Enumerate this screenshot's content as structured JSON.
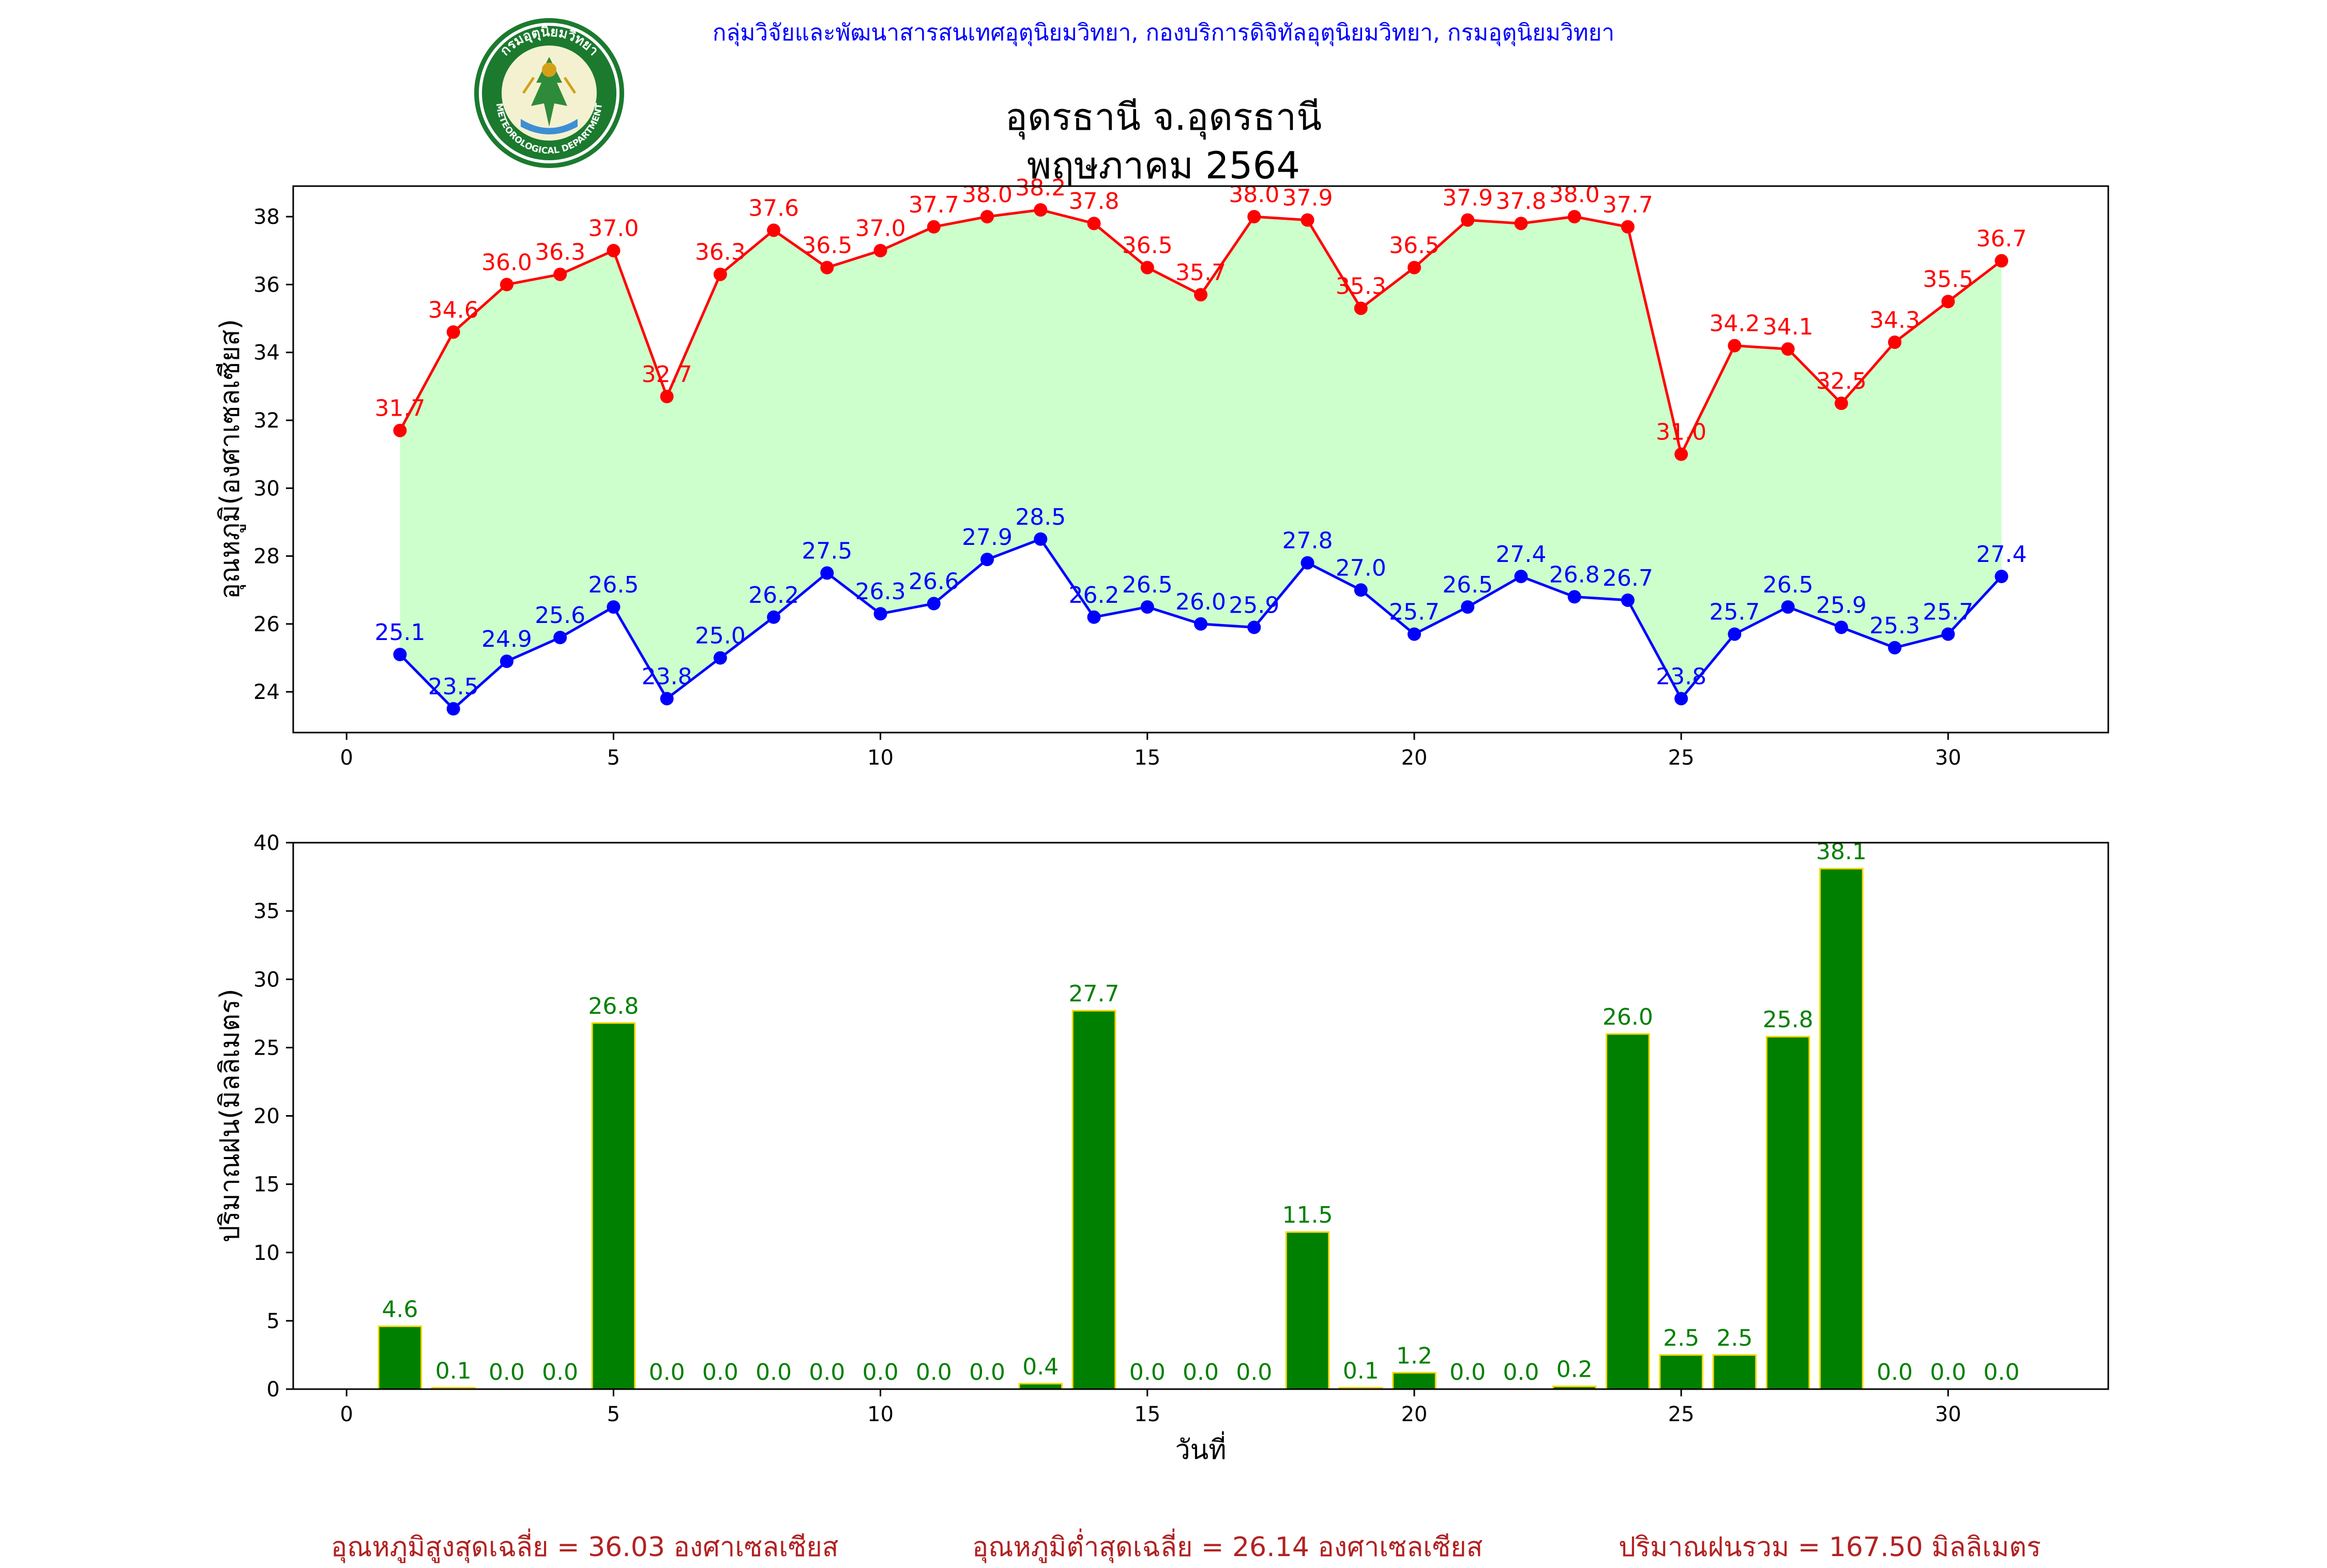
{
  "header": {
    "department": "กลุ่มวิจัยและพัฒนาสารสนเทศอุตุนิยมวิทยา, กองบริการดิจิทัลอุตุนิยมวิทยา, กรมอุตุนิยมวิทยา",
    "title_line1": "อุดรธานี จ.อุดรธานี",
    "title_line2": "พฤษภาคม 2564",
    "logo_text_top": "กรมอุตุนิยมวิทยา",
    "logo_text_bottom": "METEOROLOGICAL DEPARTMENT"
  },
  "colors": {
    "max_line": "#ff0000",
    "min_line": "#0000ff",
    "fill": "#ccffcc",
    "bar_fill": "#008000",
    "bar_edge": "#ffd700",
    "rain_label": "#008000",
    "footer": "#b22222"
  },
  "chart_data": [
    {
      "type": "line",
      "ylabel": "อุณหภูมิ(องศาเซลเซียส)",
      "xlim": [
        -1,
        33
      ],
      "ylim": [
        22.8,
        38.9
      ],
      "xticks": [
        0,
        5,
        10,
        15,
        20,
        25,
        30
      ],
      "yticks": [
        24,
        26,
        28,
        30,
        32,
        34,
        36,
        38
      ],
      "x": [
        1,
        2,
        3,
        4,
        5,
        6,
        7,
        8,
        9,
        10,
        11,
        12,
        13,
        14,
        15,
        16,
        17,
        18,
        19,
        20,
        21,
        22,
        23,
        24,
        25,
        26,
        27,
        28,
        29,
        30,
        31
      ],
      "series": [
        {
          "key": "max",
          "values": [
            31.7,
            34.6,
            36.0,
            36.3,
            37.0,
            32.7,
            36.3,
            37.6,
            36.5,
            37.0,
            37.7,
            38.0,
            38.2,
            37.8,
            36.5,
            35.7,
            38.0,
            37.9,
            35.3,
            36.5,
            37.9,
            37.8,
            38.0,
            37.7,
            31.0,
            34.2,
            34.1,
            32.5,
            34.3,
            35.5,
            36.7
          ]
        },
        {
          "key": "min",
          "values": [
            25.1,
            23.5,
            24.9,
            25.6,
            26.5,
            23.8,
            25.0,
            26.2,
            27.5,
            26.3,
            26.6,
            27.9,
            28.5,
            26.2,
            26.5,
            26.0,
            25.9,
            27.8,
            27.0,
            25.7,
            26.5,
            27.4,
            26.8,
            26.7,
            23.8,
            25.7,
            26.5,
            25.9,
            25.3,
            25.7,
            27.4
          ]
        }
      ],
      "fill_between": true,
      "grid": false
    },
    {
      "type": "bar",
      "xlabel": "วันที่",
      "ylabel": "ปริมาณฝน(มิลลิเมตร)",
      "xlim": [
        -1,
        33
      ],
      "ylim": [
        0,
        40
      ],
      "xticks": [
        0,
        5,
        10,
        15,
        20,
        25,
        30
      ],
      "yticks": [
        0,
        5,
        10,
        15,
        20,
        25,
        30,
        35,
        40
      ],
      "x": [
        1,
        2,
        3,
        4,
        5,
        6,
        7,
        8,
        9,
        10,
        11,
        12,
        13,
        14,
        15,
        16,
        17,
        18,
        19,
        20,
        21,
        22,
        23,
        24,
        25,
        26,
        27,
        28,
        29,
        30,
        31
      ],
      "values": [
        4.6,
        0.1,
        0.0,
        0.0,
        26.8,
        0.0,
        0.0,
        0.0,
        0.0,
        0.0,
        0.0,
        0.0,
        0.4,
        27.7,
        0.0,
        0.0,
        0.0,
        11.5,
        0.1,
        1.2,
        0.0,
        0.0,
        0.2,
        26.0,
        2.5,
        2.5,
        25.8,
        38.1,
        0.0,
        0.0,
        0.0
      ],
      "grid": false
    }
  ],
  "footer": {
    "avg_max": "อุณหภูมิสูงสุดเฉลี่ย = 36.03 องศาเซลเซียส",
    "avg_min": "อุณหภูมิต่ำสุดเฉลี่ย = 26.14 องศาเซลเซียส",
    "total_rain": "ปริมาณฝนรวม = 167.50 มิลลิเมตร"
  }
}
